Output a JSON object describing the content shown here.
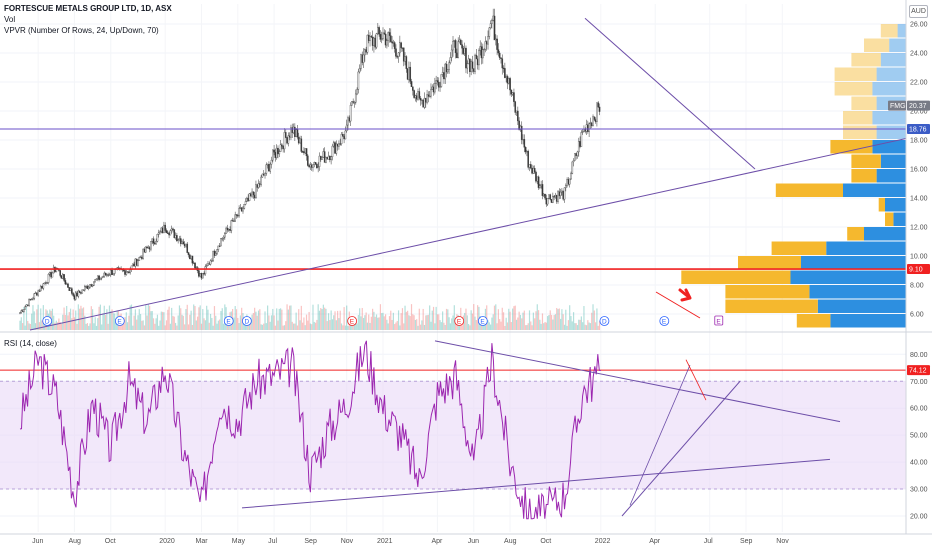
{
  "legend": {
    "title": "FORTESCUE METALS GROUP LTD, 1D, ASX",
    "volume": "Vol",
    "vpvr": "VPVR (Number Of Rows, 24, Up/Down, 70)",
    "rsi": "RSI (14, close)"
  },
  "currency": "AUD",
  "colors": {
    "up": "#26a69a",
    "down": "#ef5350",
    "candle_body": "#999999",
    "resistance": "#f02020",
    "support": "#6a4fc8",
    "trend": "#6d4ea8",
    "rsi_line": "#9c27b0",
    "rsi_band": "#e9d9f7",
    "vpvr_up": "#2d8fe0",
    "vpvr_down": "#f5b82e",
    "tag_price": "#3b5cc6",
    "tag_red": "#f02020",
    "tag_gray": "#787b86"
  },
  "price_tags": {
    "current": "20.37",
    "fmg_label": "FMG",
    "horizontal_level": "18.76",
    "support_level": "9.10",
    "rsi_level": "74.12"
  },
  "event_markers": [
    "D",
    "E",
    "E",
    "D",
    "E",
    "E",
    "E",
    "D",
    "E",
    "E"
  ],
  "chart_data": [
    {
      "type": "candlestick",
      "title": "FORTESCUE METALS GROUP LTD, 1D, ASX",
      "x_ticks": [
        "Jun",
        "Aug",
        "Oct",
        "2020",
        "Mar",
        "May",
        "Jul",
        "Sep",
        "Nov",
        "2021",
        "Apr",
        "Jun",
        "Aug",
        "Oct",
        "2022",
        "Apr",
        "Jul",
        "Sep",
        "Nov"
      ],
      "y_ticks": [
        6.0,
        8.0,
        10.0,
        12.0,
        14.0,
        16.0,
        18.0,
        20.0,
        22.0,
        24.0,
        26.0
      ],
      "ylim": [
        5.2,
        27.0
      ],
      "close_path": [
        {
          "t": "2019-05",
          "v": 6.1
        },
        {
          "t": "2019-06",
          "v": 7.6
        },
        {
          "t": "2019-07",
          "v": 9.2
        },
        {
          "t": "2019-08",
          "v": 7.2
        },
        {
          "t": "2019-09",
          "v": 8.2
        },
        {
          "t": "2019-10",
          "v": 8.9
        },
        {
          "t": "2019-11",
          "v": 9.0
        },
        {
          "t": "2019-12",
          "v": 10.5
        },
        {
          "t": "2020-01",
          "v": 12.0
        },
        {
          "t": "2020-02",
          "v": 11.0
        },
        {
          "t": "2020-03",
          "v": 8.5
        },
        {
          "t": "2020-04",
          "v": 11.0
        },
        {
          "t": "2020-05",
          "v": 12.8
        },
        {
          "t": "2020-06",
          "v": 14.5
        },
        {
          "t": "2020-07",
          "v": 17.0
        },
        {
          "t": "2020-08",
          "v": 18.8
        },
        {
          "t": "2020-09",
          "v": 16.3
        },
        {
          "t": "2020-10",
          "v": 17.0
        },
        {
          "t": "2020-11",
          "v": 18.6
        },
        {
          "t": "2020-12",
          "v": 24.5
        },
        {
          "t": "2021-01",
          "v": 25.3
        },
        {
          "t": "2021-02",
          "v": 24.0
        },
        {
          "t": "2021-03",
          "v": 20.5
        },
        {
          "t": "2021-04",
          "v": 22.0
        },
        {
          "t": "2021-05",
          "v": 24.5
        },
        {
          "t": "2021-06",
          "v": 23.0
        },
        {
          "t": "2021-07",
          "v": 26.2
        },
        {
          "t": "2021-08",
          "v": 21.5
        },
        {
          "t": "2021-09",
          "v": 16.5
        },
        {
          "t": "2021-10",
          "v": 14.0
        },
        {
          "t": "2021-11",
          "v": 14.3
        },
        {
          "t": "2021-12",
          "v": 18.5
        },
        {
          "t": "2022-01",
          "v": 20.4
        }
      ],
      "horizontal_lines": [
        18.76,
        9.1
      ],
      "vpvr_rows": [
        {
          "price": 25.5,
          "up": 0.04,
          "down": 0.08
        },
        {
          "price": 24.5,
          "up": 0.08,
          "down": 0.12
        },
        {
          "price": 23.5,
          "up": 0.12,
          "down": 0.14
        },
        {
          "price": 22.5,
          "up": 0.14,
          "down": 0.2
        },
        {
          "price": 21.5,
          "up": 0.16,
          "down": 0.18
        },
        {
          "price": 20.5,
          "up": 0.14,
          "down": 0.12
        },
        {
          "price": 19.5,
          "up": 0.16,
          "down": 0.14
        },
        {
          "price": 18.5,
          "up": 0.14,
          "down": 0.16
        },
        {
          "price": 17.5,
          "up": 0.16,
          "down": 0.2
        },
        {
          "price": 16.5,
          "up": 0.12,
          "down": 0.14
        },
        {
          "price": 15.5,
          "up": 0.14,
          "down": 0.12
        },
        {
          "price": 14.5,
          "up": 0.3,
          "down": 0.32
        },
        {
          "price": 13.5,
          "up": 0.1,
          "down": 0.03
        },
        {
          "price": 12.5,
          "up": 0.06,
          "down": 0.04
        },
        {
          "price": 11.5,
          "up": 0.2,
          "down": 0.08
        },
        {
          "price": 10.5,
          "up": 0.38,
          "down": 0.26
        },
        {
          "price": 9.5,
          "up": 0.5,
          "down": 0.3
        },
        {
          "price": 8.5,
          "up": 0.55,
          "down": 0.52
        },
        {
          "price": 7.5,
          "up": 0.46,
          "down": 0.4
        },
        {
          "price": 6.5,
          "up": 0.42,
          "down": 0.44
        },
        {
          "price": 5.5,
          "up": 0.36,
          "down": 0.16
        }
      ]
    },
    {
      "type": "line",
      "title": "RSI (14, close)",
      "y_ticks": [
        20.0,
        30.0,
        40.0,
        50.0,
        60.0,
        70.0,
        80.0
      ],
      "ylim": [
        15,
        87
      ],
      "band": [
        30,
        70
      ],
      "horizontal_lines": [
        74.12
      ],
      "path": [
        {
          "t": "2019-05",
          "v": 55
        },
        {
          "t": "2019-06",
          "v": 78
        },
        {
          "t": "2019-07",
          "v": 65
        },
        {
          "t": "2019-08",
          "v": 28
        },
        {
          "t": "2019-09",
          "v": 62
        },
        {
          "t": "2019-10",
          "v": 45
        },
        {
          "t": "2019-11",
          "v": 70
        },
        {
          "t": "2019-12",
          "v": 55
        },
        {
          "t": "2020-01",
          "v": 75
        },
        {
          "t": "2020-02",
          "v": 44
        },
        {
          "t": "2020-03",
          "v": 23
        },
        {
          "t": "2020-04",
          "v": 63
        },
        {
          "t": "2020-05",
          "v": 55
        },
        {
          "t": "2020-06",
          "v": 70
        },
        {
          "t": "2020-07",
          "v": 72
        },
        {
          "t": "2020-08",
          "v": 76
        },
        {
          "t": "2020-09",
          "v": 36
        },
        {
          "t": "2020-10",
          "v": 52
        },
        {
          "t": "2020-11",
          "v": 62
        },
        {
          "t": "2020-12",
          "v": 82
        },
        {
          "t": "2021-01",
          "v": 60
        },
        {
          "t": "2021-02",
          "v": 50
        },
        {
          "t": "2021-03",
          "v": 33
        },
        {
          "t": "2021-04",
          "v": 65
        },
        {
          "t": "2021-05",
          "v": 72
        },
        {
          "t": "2021-06",
          "v": 38
        },
        {
          "t": "2021-07",
          "v": 78
        },
        {
          "t": "2021-08",
          "v": 40
        },
        {
          "t": "2021-09",
          "v": 20
        },
        {
          "t": "2021-10",
          "v": 22
        },
        {
          "t": "2021-11",
          "v": 28
        },
        {
          "t": "2021-12",
          "v": 66
        },
        {
          "t": "2022-01",
          "v": 74
        }
      ]
    }
  ]
}
